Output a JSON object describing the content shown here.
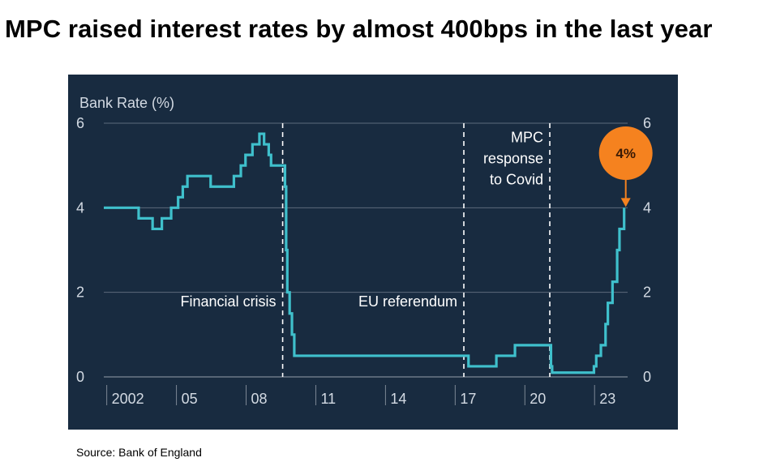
{
  "title": "MPC raised interest rates by almost 400bps in the last year",
  "source": "Source: Bank of England",
  "colors": {
    "panel_bg": "#182b40",
    "line": "#3fc0cc",
    "grid": "#5d6b7b",
    "text": "#d3dae3",
    "callout": "#f5821f"
  },
  "chart_data": {
    "type": "line",
    "ylabel": "Bank Rate (%)",
    "ylim": [
      0,
      6
    ],
    "y_ticks": [
      0,
      2,
      4,
      6
    ],
    "y_tick_labels": [
      "0",
      "2",
      "4",
      "6"
    ],
    "xlim": [
      2001.0,
      2023.9
    ],
    "x_ticks": [
      2002,
      2005,
      2008,
      2011,
      2014,
      2017,
      2020,
      2023
    ],
    "x_tick_labels": [
      "2002",
      "05",
      "08",
      "11",
      "14",
      "17",
      "20",
      "23"
    ],
    "grid": true,
    "series": [
      {
        "x": [
          2001.0,
          2002.0,
          2002.5,
          2003.1,
          2003.5,
          2003.9,
          2004.2,
          2004.4,
          2004.6,
          2004.8,
          2005.6,
          2006.0,
          2006.6,
          2006.9,
          2007.1,
          2007.4,
          2007.7,
          2007.9,
          2008.1,
          2008.2,
          2008.8,
          2008.85,
          2008.9,
          2009.0,
          2009.1,
          2009.2,
          2016.6,
          2016.7,
          2017.8,
          2017.9,
          2018.6,
          2018.7,
          2020.2,
          2020.25,
          2020.3,
          2021.9,
          2022.1,
          2022.2,
          2022.4,
          2022.6,
          2022.7,
          2022.9,
          2023.1
        ],
        "y": [
          4.0,
          4.0,
          3.75,
          3.5,
          3.75,
          4.0,
          4.25,
          4.5,
          4.75,
          4.75,
          4.5,
          4.5,
          4.75,
          5.0,
          5.25,
          5.5,
          5.75,
          5.5,
          5.25,
          5.0,
          4.5,
          3.0,
          2.0,
          1.5,
          1.0,
          0.5,
          0.5,
          0.25,
          0.25,
          0.5,
          0.5,
          0.75,
          0.75,
          0.25,
          0.1,
          0.1,
          0.25,
          0.5,
          0.75,
          1.25,
          1.75,
          2.25,
          3.0
        ]
      }
    ],
    "series_tail": {
      "x": [
        2023.2,
        2023.3,
        2023.4
      ],
      "y": [
        3.5,
        3.5,
        4.0
      ]
    },
    "events": [
      {
        "x": 2008.7,
        "label": "Financial crisis",
        "label_lines": [
          "Financial crisis"
        ],
        "label_side": "left",
        "label_y": 1.67
      },
      {
        "x": 2016.5,
        "label": "EU referendum",
        "label_lines": [
          "EU referendum"
        ],
        "label_side": "left",
        "label_y": 1.67
      },
      {
        "x": 2020.2,
        "label": "MPC response to Covid",
        "label_lines": [
          "MPC",
          "response",
          "to Covid"
        ],
        "label_side": "left",
        "label_y": 5.55
      }
    ],
    "dashed_boundary": {
      "x": 2016.5,
      "x2": 2020.2
    },
    "callout": {
      "label": "4%",
      "x": 2023.4,
      "y": 4.0
    }
  }
}
